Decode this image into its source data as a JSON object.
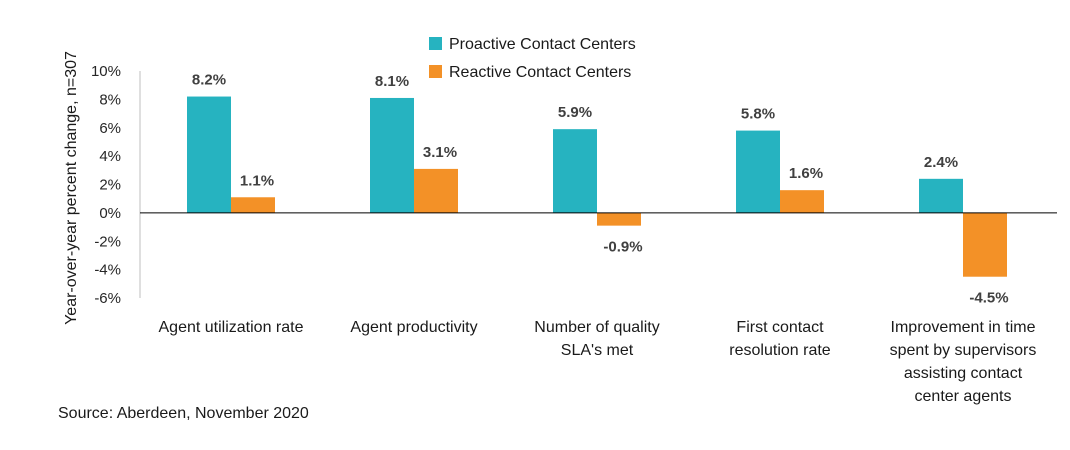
{
  "chart_data": {
    "type": "bar",
    "ylabel": "Year-over-year percent change, n=307",
    "ylim": [
      -6,
      10
    ],
    "yticks": [
      "10%",
      "8%",
      "6%",
      "4%",
      "2%",
      "0%",
      "-2%",
      "-4%",
      "-6%"
    ],
    "ytick_values": [
      10,
      8,
      6,
      4,
      2,
      0,
      -2,
      -4,
      -6
    ],
    "categories": [
      [
        "Agent utilization rate"
      ],
      [
        "Agent productivity"
      ],
      [
        "Number of quality",
        "SLA's met"
      ],
      [
        "First contact",
        "resolution rate"
      ],
      [
        "Improvement in time",
        "spent by supervisors",
        "assisting contact",
        "center agents"
      ]
    ],
    "series": [
      {
        "name": "Proactive Contact Centers",
        "color": "#26b3c0",
        "values": [
          8.2,
          8.1,
          5.9,
          5.8,
          2.4
        ],
        "labels": [
          "8.2%",
          "8.1%",
          "5.9%",
          "5.8%",
          "2.4%"
        ]
      },
      {
        "name": "Reactive Contact Centers",
        "color": "#f39127",
        "values": [
          1.1,
          3.1,
          -0.9,
          1.6,
          -4.5
        ],
        "labels": [
          "1.1%",
          "3.1%",
          "-0.9%",
          "1.6%",
          "-4.5%"
        ]
      }
    ],
    "legend_position": "top-center",
    "grid": false
  },
  "source": "Source: Aberdeen, November 2020"
}
